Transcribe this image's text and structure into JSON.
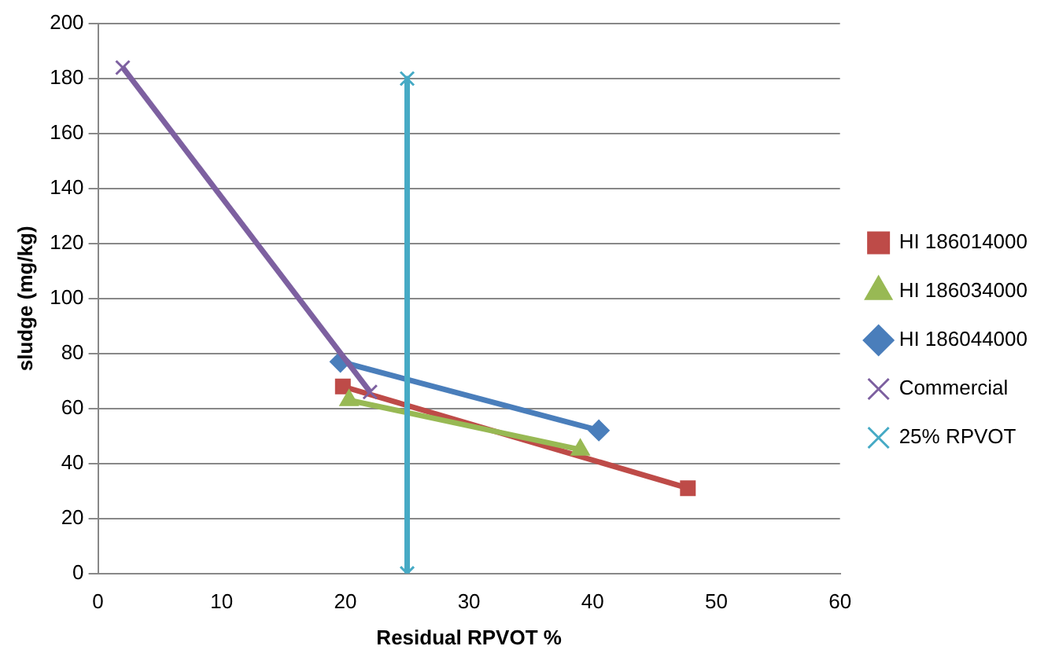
{
  "chart_data": {
    "type": "line",
    "xlabel": "Residual RPVOT %",
    "ylabel": "sludge (mg/kg)",
    "xlim": [
      0,
      60
    ],
    "xticks": [
      0,
      10,
      20,
      30,
      40,
      50,
      60
    ],
    "ylim": [
      0,
      200
    ],
    "yticks": [
      0,
      20,
      40,
      60,
      80,
      100,
      120,
      140,
      160,
      180,
      200
    ],
    "grid": "y",
    "legend": "right",
    "line_style": "solid",
    "series": [
      {
        "name": "HI 186014000",
        "color": "#be4b48",
        "marker": "square",
        "x": [
          19.8,
          47.7
        ],
        "values": [
          68,
          31
        ]
      },
      {
        "name": "HI 186034000",
        "color": "#98b954",
        "marker": "triangle",
        "x": [
          20.3,
          39
        ],
        "values": [
          63,
          45
        ]
      },
      {
        "name": "HI 186044000",
        "color": "#4a7ebb",
        "marker": "diamond",
        "x": [
          19.6,
          40.5
        ],
        "values": [
          77,
          52
        ]
      },
      {
        "name": "Commercial",
        "color": "#7d60a0",
        "marker": "cross",
        "x": [
          2,
          22
        ],
        "values": [
          184,
          66
        ]
      },
      {
        "name": "25% RPVOT",
        "color": "#46aac5",
        "marker": "cross",
        "x": [
          25,
          25
        ],
        "values": [
          180,
          0
        ]
      }
    ]
  }
}
